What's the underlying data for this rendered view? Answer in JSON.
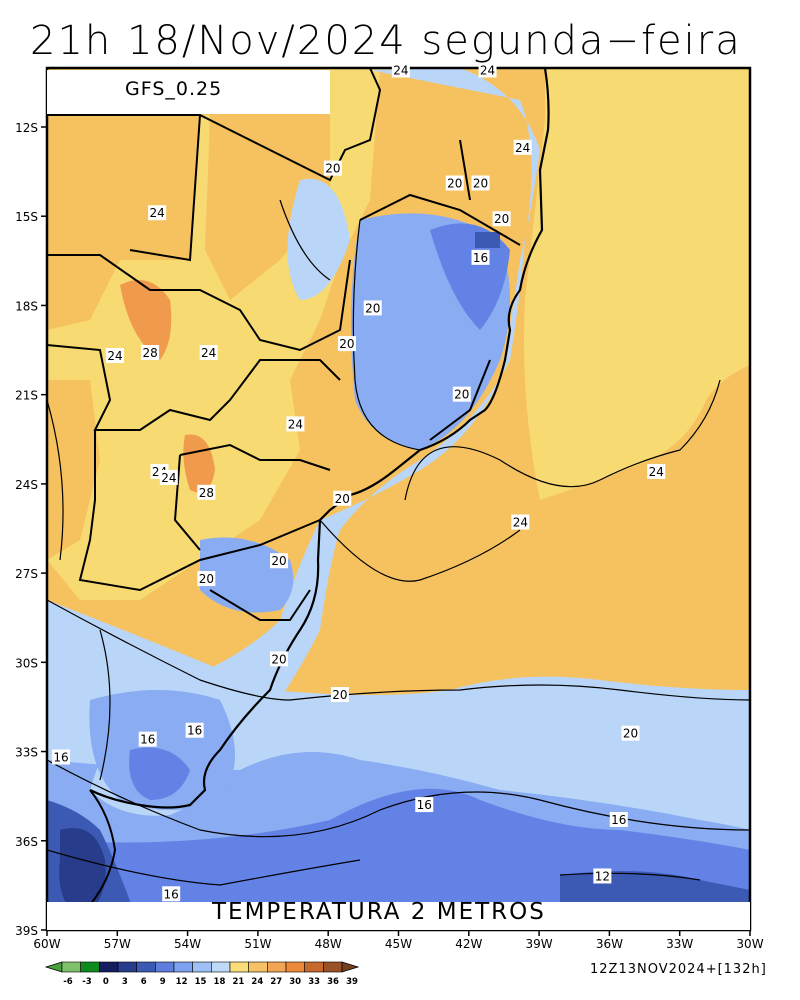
{
  "title": "21h 18/Nov/2024 segunda−feira",
  "model": "GFS_0.25",
  "variable": "TEMPERATURA 2 METROS",
  "run_info": "12Z13NOV2024+[132h]",
  "lat_ticks": [
    "12S",
    "15S",
    "18S",
    "21S",
    "24S",
    "27S",
    "30S",
    "33S",
    "36S",
    "39S"
  ],
  "lon_ticks": [
    "60W",
    "57W",
    "54W",
    "51W",
    "48W",
    "45W",
    "42W",
    "39W",
    "36W",
    "33W",
    "30W"
  ],
  "contour_labels": [
    {
      "text": "24",
      "lon": -44.9,
      "lat": -10.1
    },
    {
      "text": "24",
      "lon": -41.2,
      "lat": -10.1
    },
    {
      "text": "24",
      "lon": -39.7,
      "lat": -12.7
    },
    {
      "text": "20",
      "lon": -47.8,
      "lat": -13.4
    },
    {
      "text": "20",
      "lon": -42.6,
      "lat": -13.9
    },
    {
      "text": "20",
      "lon": -41.5,
      "lat": -13.9
    },
    {
      "text": "24",
      "lon": -55.3,
      "lat": -14.9
    },
    {
      "text": "20",
      "lon": -40.6,
      "lat": -15.1
    },
    {
      "text": "16",
      "lon": -41.5,
      "lat": -16.4
    },
    {
      "text": "20",
      "lon": -46.1,
      "lat": -18.1
    },
    {
      "text": "24",
      "lon": -57.1,
      "lat": -19.7
    },
    {
      "text": "28",
      "lon": -55.6,
      "lat": -19.6
    },
    {
      "text": "24",
      "lon": -53.1,
      "lat": -19.6
    },
    {
      "text": "20",
      "lon": -47.2,
      "lat": -19.3
    },
    {
      "text": "20",
      "lon": -42.3,
      "lat": -21.0
    },
    {
      "text": "24",
      "lon": -49.4,
      "lat": -22.0
    },
    {
      "text": "24",
      "lon": -55.2,
      "lat": -23.6
    },
    {
      "text": "24",
      "lon": -54.8,
      "lat": -23.8
    },
    {
      "text": "28",
      "lon": -53.2,
      "lat": -24.3
    },
    {
      "text": "20",
      "lon": -47.4,
      "lat": -24.5
    },
    {
      "text": "24",
      "lon": -34.0,
      "lat": -23.6
    },
    {
      "text": "24",
      "lon": -39.8,
      "lat": -25.3
    },
    {
      "text": "20",
      "lon": -50.1,
      "lat": -26.6
    },
    {
      "text": "20",
      "lon": -53.2,
      "lat": -27.2
    },
    {
      "text": "20",
      "lon": -50.1,
      "lat": -29.9
    },
    {
      "text": "20",
      "lon": -47.5,
      "lat": -31.1
    },
    {
      "text": "20",
      "lon": -35.1,
      "lat": -32.4
    },
    {
      "text": "16",
      "lon": -53.7,
      "lat": -32.3
    },
    {
      "text": "16",
      "lon": -55.7,
      "lat": -32.6
    },
    {
      "text": "16",
      "lon": -59.4,
      "lat": -33.2
    },
    {
      "text": "16",
      "lon": -43.9,
      "lat": -34.8
    },
    {
      "text": "16",
      "lon": -35.6,
      "lat": -35.3
    },
    {
      "text": "12",
      "lon": -36.3,
      "lat": -37.2
    },
    {
      "text": "16",
      "lon": -54.7,
      "lat": -37.8
    }
  ],
  "colorbar": {
    "ticks": [
      "-6",
      "-3",
      "0",
      "3",
      "6",
      "9",
      "12",
      "15",
      "18",
      "21",
      "24",
      "27",
      "30",
      "33",
      "36",
      "39"
    ],
    "colors": [
      "#4aa13c",
      "#7fc06a",
      "#0f8a1c",
      "#131d5f",
      "#283c8c",
      "#3c5ab4",
      "#5f7ddc",
      "#7ea2ef",
      "#9fc0f5",
      "#bfdaf8",
      "#f9dd78",
      "#f6c265",
      "#f2a555",
      "#ec8a3c",
      "#c56a2c",
      "#995125",
      "#74401c"
    ]
  },
  "field_colors": {
    "t12": "#3c5ab4",
    "t15": "#6282e6",
    "t18": "#89acf2",
    "t21": "#b9d6f8",
    "t24": "#f8da72",
    "t27": "#f6c260",
    "t30": "#ef9a4c"
  }
}
